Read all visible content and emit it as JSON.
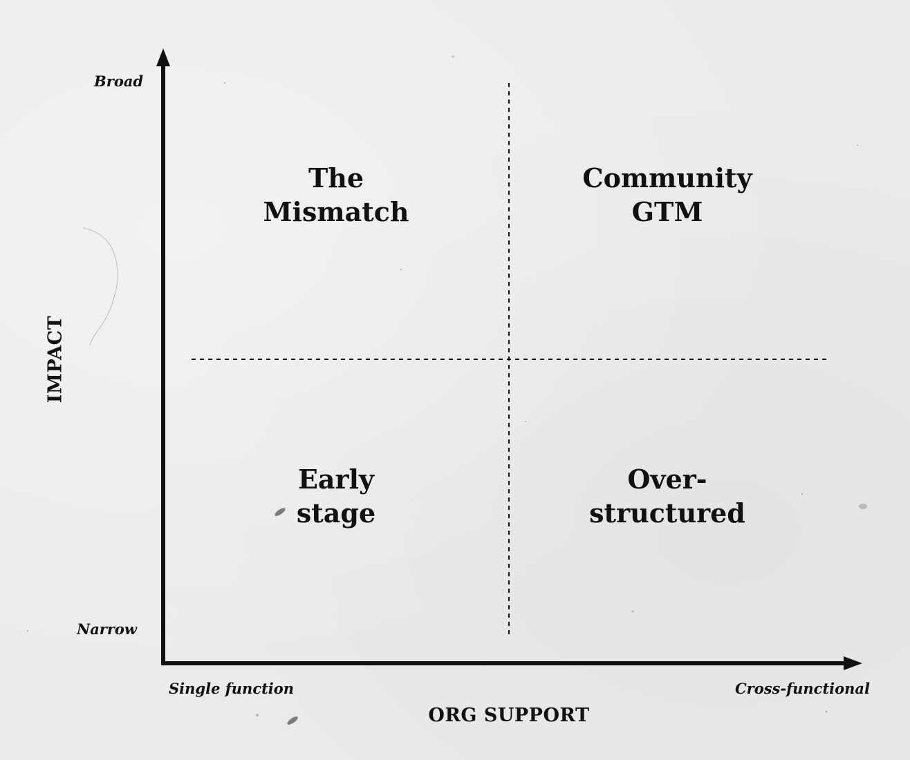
{
  "y_axis": {
    "title": "IMPACT",
    "high_label": "Broad",
    "low_label": "Narrow"
  },
  "x_axis": {
    "title": "ORG SUPPORT",
    "low_label": "Single function",
    "high_label": "Cross-functional"
  },
  "quadrants": {
    "top_left": {
      "line1": "The",
      "line2": "Mismatch"
    },
    "top_right": {
      "line1": "Community",
      "line2": "GTM"
    },
    "bottom_left": {
      "line1": "Early",
      "line2": "stage"
    },
    "bottom_right": {
      "line1": "Over-",
      "line2": "structured"
    }
  },
  "colors": {
    "ink": "#111111",
    "paper": "#ebebeb"
  }
}
